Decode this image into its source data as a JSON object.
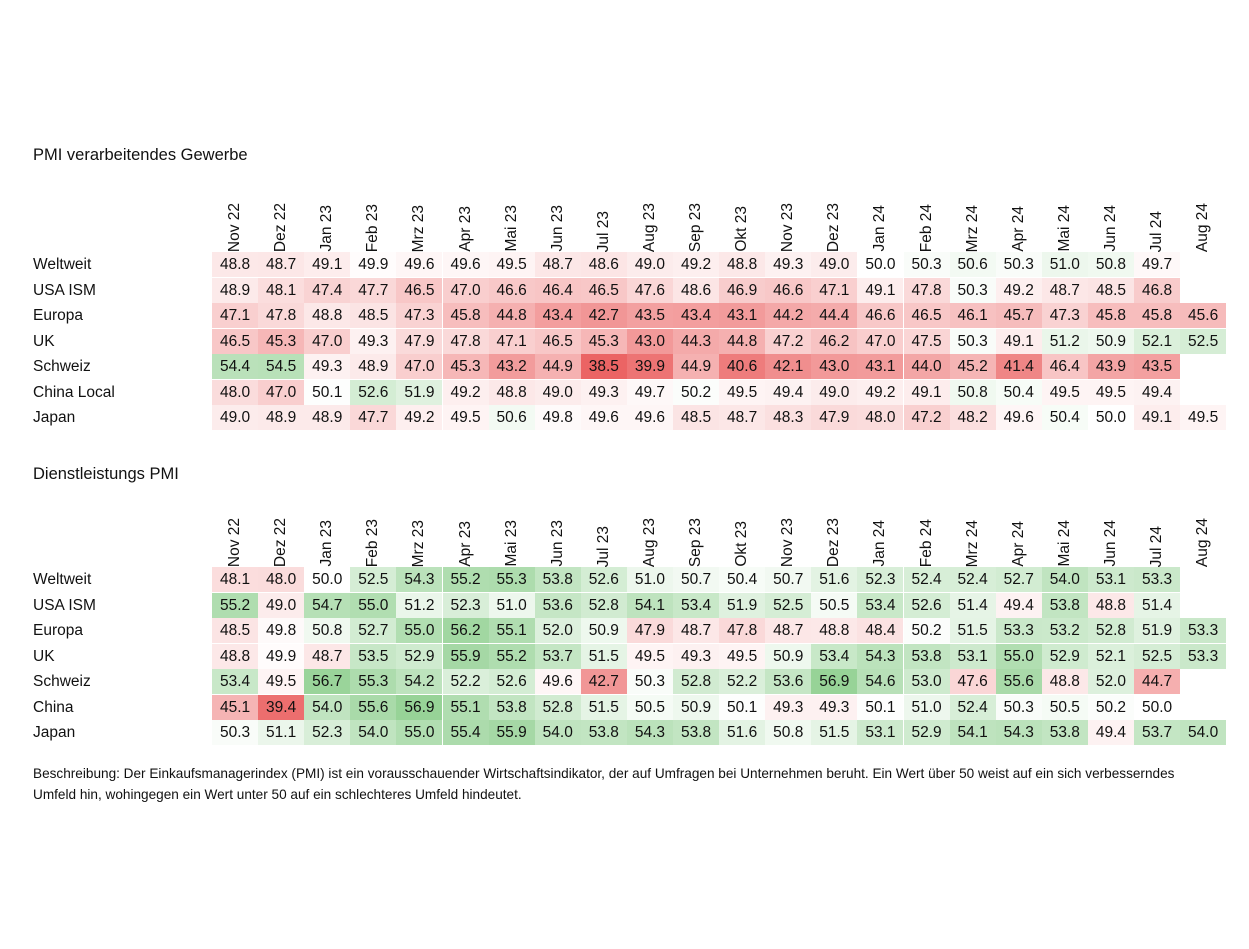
{
  "chart_data": [
    {
      "type": "heatmap",
      "title": "PMI verarbeitendes Gewerbe",
      "columns": [
        "Nov 22",
        "Dez 22",
        "Jan 23",
        "Feb 23",
        "Mrz 23",
        "Apr 23",
        "Mai 23",
        "Jun 23",
        "Jul 23",
        "Aug 23",
        "Sep 23",
        "Okt 23",
        "Nov 23",
        "Dez 23",
        "Jan 24",
        "Feb 24",
        "Mrz 24",
        "Apr 24",
        "Mai 24",
        "Jun 24",
        "Jul 24",
        "Aug 24"
      ],
      "rows": [
        {
          "label": "Weltweit",
          "values": [
            48.8,
            48.7,
            49.1,
            49.9,
            49.6,
            49.6,
            49.5,
            48.7,
            48.6,
            49.0,
            49.2,
            48.8,
            49.3,
            49.0,
            50.0,
            50.3,
            50.6,
            50.3,
            51.0,
            50.8,
            49.7,
            null
          ]
        },
        {
          "label": "USA ISM",
          "values": [
            48.9,
            48.1,
            47.4,
            47.7,
            46.5,
            47.0,
            46.6,
            46.4,
            46.5,
            47.6,
            48.6,
            46.9,
            46.6,
            47.1,
            49.1,
            47.8,
            50.3,
            49.2,
            48.7,
            48.5,
            46.8,
            null
          ]
        },
        {
          "label": "Europa",
          "values": [
            47.1,
            47.8,
            48.8,
            48.5,
            47.3,
            45.8,
            44.8,
            43.4,
            42.7,
            43.5,
            43.4,
            43.1,
            44.2,
            44.4,
            46.6,
            46.5,
            46.1,
            45.7,
            47.3,
            45.8,
            45.8,
            45.6
          ]
        },
        {
          "label": "UK",
          "values": [
            46.5,
            45.3,
            47.0,
            49.3,
            47.9,
            47.8,
            47.1,
            46.5,
            45.3,
            43.0,
            44.3,
            44.8,
            47.2,
            46.2,
            47.0,
            47.5,
            50.3,
            49.1,
            51.2,
            50.9,
            52.1,
            52.5
          ]
        },
        {
          "label": "Schweiz",
          "values": [
            54.4,
            54.5,
            49.3,
            48.9,
            47.0,
            45.3,
            43.2,
            44.9,
            38.5,
            39.9,
            44.9,
            40.6,
            42.1,
            43.0,
            43.1,
            44.0,
            45.2,
            41.4,
            46.4,
            43.9,
            43.5,
            null
          ]
        },
        {
          "label": "China Local",
          "values": [
            48.0,
            47.0,
            50.1,
            52.6,
            51.9,
            49.2,
            48.8,
            49.0,
            49.3,
            49.7,
            50.2,
            49.5,
            49.4,
            49.0,
            49.2,
            49.1,
            50.8,
            50.4,
            49.5,
            49.5,
            49.4,
            null
          ]
        },
        {
          "label": "Japan",
          "values": [
            49.0,
            48.9,
            48.9,
            47.7,
            49.2,
            49.5,
            50.6,
            49.8,
            49.6,
            49.6,
            48.5,
            48.7,
            48.3,
            47.9,
            48.0,
            47.2,
            48.2,
            49.6,
            50.4,
            50.0,
            49.1,
            49.5
          ]
        }
      ]
    },
    {
      "type": "heatmap",
      "title": "Dienstleistungs PMI",
      "columns": [
        "Nov 22",
        "Dez 22",
        "Jan 23",
        "Feb 23",
        "Mrz 23",
        "Apr 23",
        "Mai 23",
        "Jun 23",
        "Jul 23",
        "Aug 23",
        "Sep 23",
        "Okt 23",
        "Nov 23",
        "Dez 23",
        "Jan 24",
        "Feb 24",
        "Mrz 24",
        "Apr 24",
        "Mai 24",
        "Jun 24",
        "Jul 24",
        "Aug 24"
      ],
      "rows": [
        {
          "label": "Weltweit",
          "values": [
            48.1,
            48.0,
            50.0,
            52.5,
            54.3,
            55.2,
            55.3,
            53.8,
            52.6,
            51.0,
            50.7,
            50.4,
            50.7,
            51.6,
            52.3,
            52.4,
            52.4,
            52.7,
            54.0,
            53.1,
            53.3,
            null
          ]
        },
        {
          "label": "USA ISM",
          "values": [
            55.2,
            49.0,
            54.7,
            55.0,
            51.2,
            52.3,
            51.0,
            53.6,
            52.8,
            54.1,
            53.4,
            51.9,
            52.5,
            50.5,
            53.4,
            52.6,
            51.4,
            49.4,
            53.8,
            48.8,
            51.4,
            null
          ]
        },
        {
          "label": "Europa",
          "values": [
            48.5,
            49.8,
            50.8,
            52.7,
            55.0,
            56.2,
            55.1,
            52.0,
            50.9,
            47.9,
            48.7,
            47.8,
            48.7,
            48.8,
            48.4,
            50.2,
            51.5,
            53.3,
            53.2,
            52.8,
            51.9,
            53.3
          ]
        },
        {
          "label": "UK",
          "values": [
            48.8,
            49.9,
            48.7,
            53.5,
            52.9,
            55.9,
            55.2,
            53.7,
            51.5,
            49.5,
            49.3,
            49.5,
            50.9,
            53.4,
            54.3,
            53.8,
            53.1,
            55.0,
            52.9,
            52.1,
            52.5,
            53.3
          ]
        },
        {
          "label": "Schweiz",
          "values": [
            53.4,
            49.5,
            56.7,
            55.3,
            54.2,
            52.2,
            52.6,
            49.6,
            42.7,
            50.3,
            52.8,
            52.2,
            53.6,
            56.9,
            54.6,
            53.0,
            47.6,
            55.6,
            48.8,
            52.0,
            44.7,
            null
          ]
        },
        {
          "label": "China",
          "values": [
            45.1,
            39.4,
            54.0,
            55.6,
            56.9,
            55.1,
            53.8,
            52.8,
            51.5,
            50.5,
            50.9,
            50.1,
            49.3,
            49.3,
            50.1,
            51.0,
            52.4,
            50.3,
            50.5,
            50.2,
            50.0,
            null
          ]
        },
        {
          "label": "Japan",
          "values": [
            50.3,
            51.1,
            52.3,
            54.0,
            55.0,
            55.4,
            55.9,
            54.0,
            53.8,
            54.3,
            53.8,
            51.6,
            50.8,
            51.5,
            53.1,
            52.9,
            54.1,
            54.3,
            53.8,
            49.4,
            53.7,
            54.0
          ]
        }
      ]
    }
  ],
  "description": "Beschreibung: Der Einkaufsmanagerindex (PMI) ist ein vorausschauender Wirtschaftsindikator, der auf Umfragen bei Unternehmen beruht. Ein Wert über 50 weist auf ein sich verbesserndes Umfeld hin, wohingegen ein Wert unter 50 auf ein schlechteres Umfeld hindeutet."
}
